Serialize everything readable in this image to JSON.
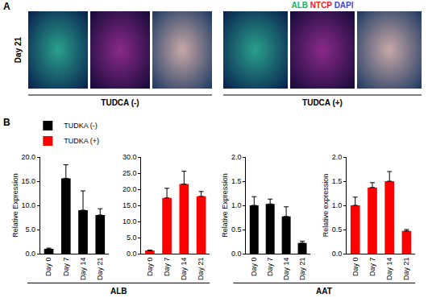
{
  "figure": {
    "panel_a": {
      "label": "A",
      "stain_labels": [
        {
          "text": "ALB",
          "color": "#22b14c"
        },
        {
          "text": "NTCP",
          "color": "#ed1c24"
        },
        {
          "text": "DAPI",
          "color": "#3f48cc"
        }
      ],
      "row_label": "Day 21",
      "groups": [
        "TUDCA (-)",
        "TUDCA (+)"
      ]
    },
    "panel_b": {
      "label": "B",
      "groups": [
        {
          "label": "ALB"
        },
        {
          "label": "AAT"
        }
      ]
    }
  },
  "chart_data": [
    {
      "type": "bar",
      "ylabel": "Relative Expression",
      "categories": [
        "Day 0",
        "Day 7",
        "Day 14",
        "Day 21"
      ],
      "series": [
        {
          "name": "TUDKA (-)",
          "color": "#000000",
          "values": [
            1.0,
            15.6,
            9.0,
            8.0
          ],
          "errors": [
            0.15,
            2.8,
            4.0,
            1.3
          ]
        }
      ],
      "ylim": [
        0,
        20
      ],
      "yticks": [
        {
          "value": 0,
          "label": "0.0"
        },
        {
          "value": 5,
          "label": "5.0"
        },
        {
          "value": 10,
          "label": "10.0"
        },
        {
          "value": 15,
          "label": "15.0"
        },
        {
          "value": 20,
          "label": "20.0"
        }
      ],
      "legend": "upper left"
    },
    {
      "type": "bar",
      "categories": [
        "Day 0",
        "Day 7",
        "Day 14",
        "Day 21"
      ],
      "series": [
        {
          "name": "TUDKA (+)",
          "color": "#ff0000",
          "values": [
            1.0,
            17.3,
            21.6,
            17.8
          ],
          "errors": [
            0.1,
            3.0,
            4.0,
            1.5
          ]
        }
      ],
      "ylim": [
        0,
        30
      ],
      "yticks": [
        {
          "value": 0,
          "label": "0.0"
        },
        {
          "value": 5,
          "label": "5.0"
        },
        {
          "value": 10,
          "label": "10.0"
        },
        {
          "value": 15,
          "label": "15.0"
        },
        {
          "value": 20,
          "label": "20.0"
        },
        {
          "value": 25,
          "label": "25.0"
        },
        {
          "value": 30,
          "label": "30.0"
        }
      ]
    },
    {
      "type": "bar",
      "ylabel": "Relative Expression",
      "categories": [
        "Day 0",
        "Day 7",
        "Day 14",
        "Day 21"
      ],
      "series": [
        {
          "name": "TUDKA (-)",
          "color": "#000000",
          "values": [
            1.0,
            1.03,
            0.77,
            0.22
          ],
          "errors": [
            0.18,
            0.1,
            0.2,
            0.04
          ]
        }
      ],
      "ylim": [
        0,
        2
      ],
      "yticks": [
        {
          "value": 0,
          "label": "0.0"
        },
        {
          "value": 0.5,
          "label": "0.5"
        },
        {
          "value": 1,
          "label": "1.0"
        },
        {
          "value": 1.5,
          "label": "1.5"
        },
        {
          "value": 2,
          "label": "2.0"
        }
      ]
    },
    {
      "type": "bar",
      "ylabel": "Relative expression",
      "categories": [
        "Day 0",
        "Day 7",
        "Day 14",
        "Day 21"
      ],
      "series": [
        {
          "name": "TUDKA (+)",
          "color": "#ff0000",
          "values": [
            1.0,
            1.37,
            1.5,
            0.47
          ],
          "errors": [
            0.17,
            0.1,
            0.2,
            0.03
          ]
        }
      ],
      "ylim": [
        0,
        2
      ],
      "yticks": [
        {
          "value": 0,
          "label": "0.0"
        },
        {
          "value": 0.5,
          "label": "0.5"
        },
        {
          "value": 1,
          "label": "1.0"
        },
        {
          "value": 1.5,
          "label": "1.5"
        },
        {
          "value": 2,
          "label": "2.0"
        }
      ]
    }
  ]
}
